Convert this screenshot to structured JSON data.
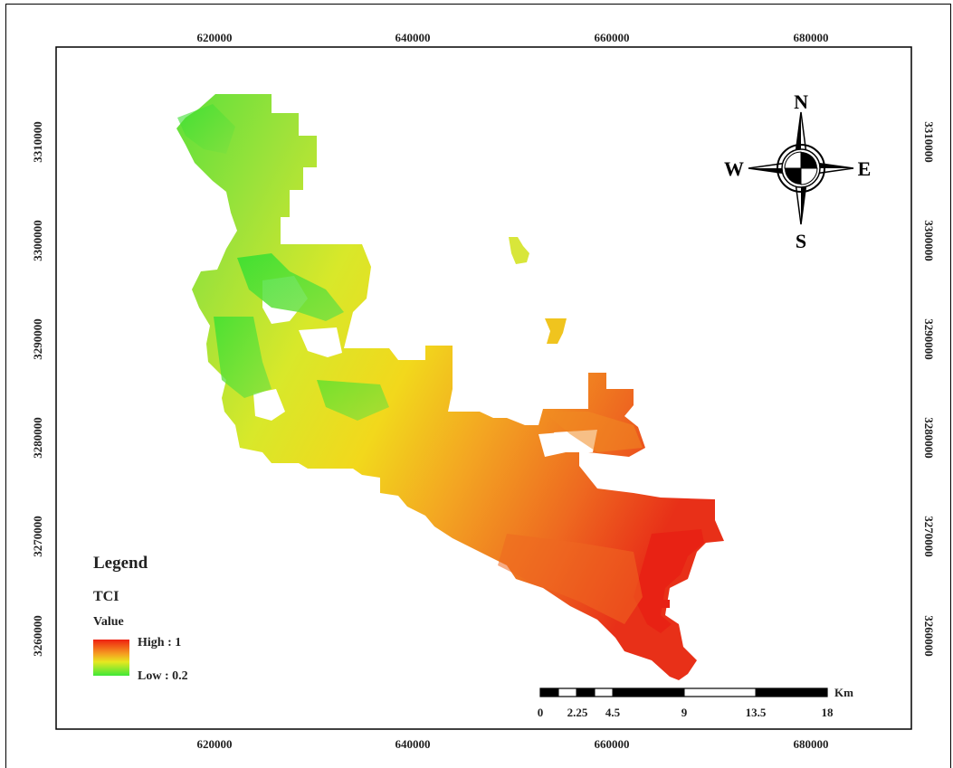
{
  "map": {
    "x_ticks": [
      "620000",
      "640000",
      "660000",
      "680000"
    ],
    "y_ticks": [
      "3310000",
      "3300000",
      "3290000",
      "3280000",
      "3270000",
      "3260000"
    ],
    "colors": {
      "high": "#ee2010",
      "mid": "#e6e820",
      "low": "#3ee838",
      "frame": "#000000"
    }
  },
  "legend": {
    "title": "Legend",
    "layer": "TCI",
    "value_label": "Value",
    "high_label": "High : 1",
    "low_label": "Low : 0.2"
  },
  "north_arrow": {
    "n": "N",
    "s": "S",
    "e": "E",
    "w": "W"
  },
  "scale_bar": {
    "labels": [
      "0",
      "2.25",
      "4.5",
      "9",
      "13.5",
      "18"
    ],
    "unit": "Km"
  }
}
